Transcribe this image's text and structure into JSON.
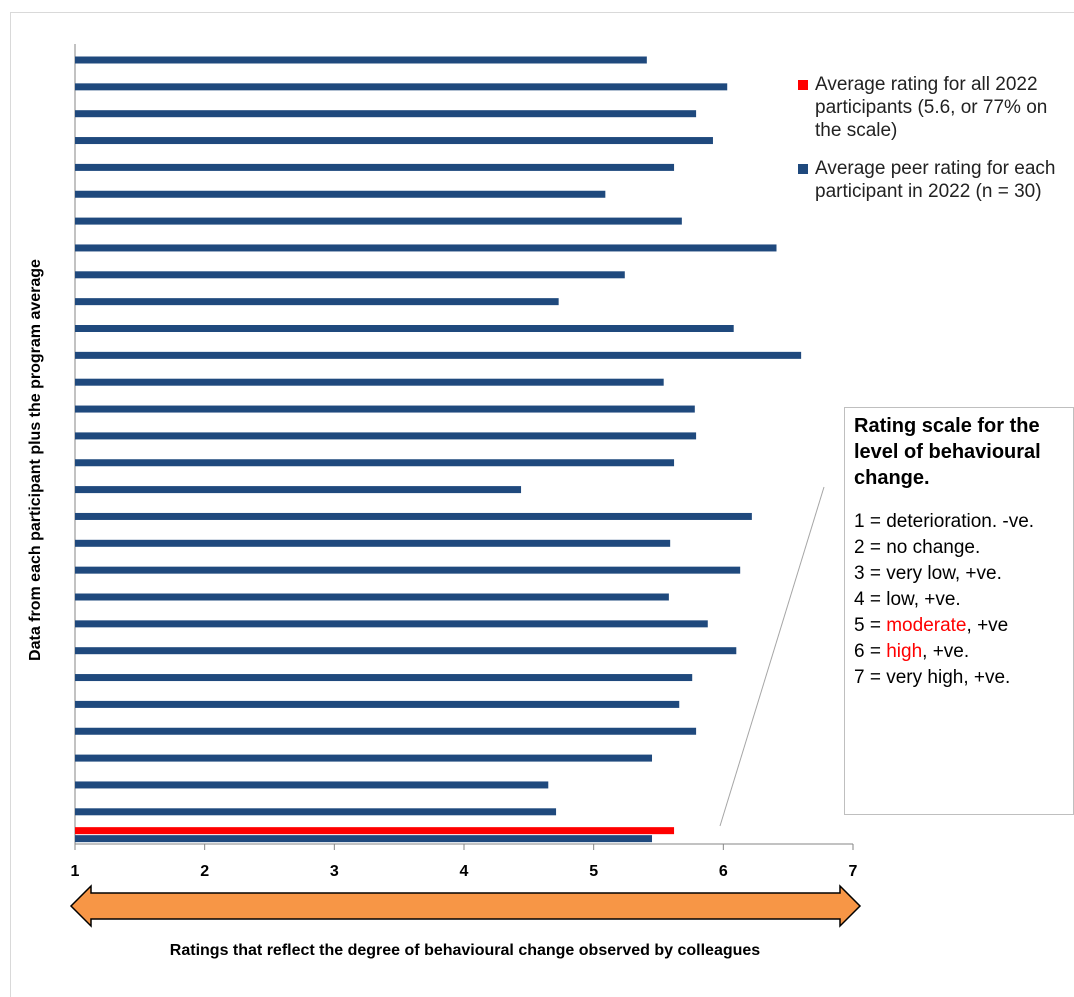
{
  "chart_data": {
    "type": "bar",
    "orientation": "horizontal",
    "xlim": [
      1,
      7
    ],
    "xticks": [
      "1",
      "2",
      "3",
      "4",
      "5",
      "6",
      "7"
    ],
    "ylabel": "Data from each participant plus the program average",
    "xlabel": "Ratings that reflect the degree of behavioural change observed by colleagues",
    "series": [
      {
        "name": "Average peer rating for each participant in 2022 (n = 30)",
        "color": "#1f497d",
        "values": [
          5.41,
          6.03,
          5.79,
          5.92,
          5.62,
          5.09,
          5.68,
          6.41,
          5.24,
          4.73,
          6.08,
          6.6,
          5.54,
          5.78,
          5.79,
          5.62,
          4.44,
          6.22,
          5.59,
          6.13,
          5.58,
          5.88,
          6.1,
          5.76,
          5.66,
          5.79,
          5.45,
          4.65,
          4.71,
          5.45
        ]
      },
      {
        "name": "Average rating for all 2022 participants (5.6, or 77% on the scale)",
        "color": "#ff0000",
        "values": [
          5.62
        ]
      }
    ],
    "legend": [
      {
        "label": "Average rating for all 2022 participants (5.6, or 77% on the scale)",
        "color": "#ff0000"
      },
      {
        "label": "Average peer rating for each participant in 2022 (n = 30)",
        "color": "#1f497d"
      }
    ],
    "legend_position": "right",
    "grid": false
  },
  "rating_scale": {
    "title": "Rating scale for the level of behavioural change.",
    "items": [
      {
        "pre": "1 = ",
        "em": "",
        "post": "deterioration. -ve."
      },
      {
        "pre": "2 = ",
        "em": "",
        "post": "no change."
      },
      {
        "pre": "3 = ",
        "em": "",
        "post": "very low, +ve."
      },
      {
        "pre": "4 = ",
        "em": "",
        "post": "low, +ve."
      },
      {
        "pre": "5 = ",
        "em": "moderate",
        "post": ", +ve"
      },
      {
        "pre": "6 = ",
        "em": "high",
        "post": ", +ve."
      },
      {
        "pre": "7 = ",
        "em": "",
        "post": "very high, +ve."
      }
    ],
    "highlight_color": "#ff0000"
  },
  "arrow_color": "#f79646"
}
